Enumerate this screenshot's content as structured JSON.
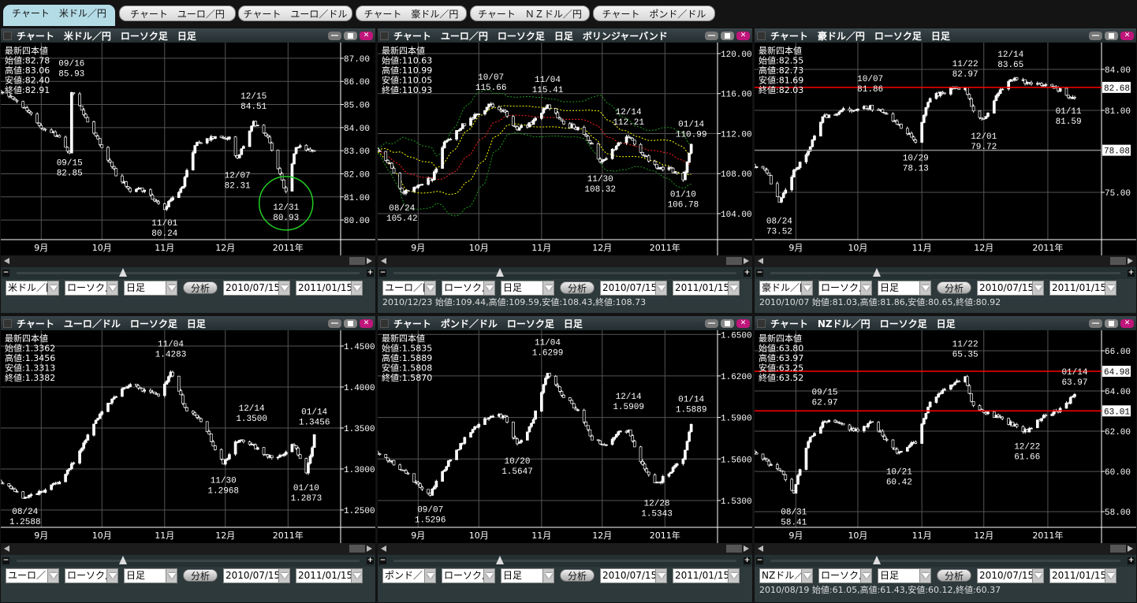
{
  "tabs": [
    {
      "label": "チャート　米ドル／円",
      "active": true
    },
    {
      "label": "チャート　ユーロ／円",
      "active": false
    },
    {
      "label": "チャート　ユーロ／ドル",
      "active": false
    },
    {
      "label": "チャート　豪ドル／円",
      "active": false
    },
    {
      "label": "チャート　ＮＺドル／円",
      "active": false
    },
    {
      "label": "チャート　ポンド／ドル",
      "active": false
    }
  ],
  "colors": {
    "up": "#ffffff",
    "grid": "#555555",
    "hline": "#ff0000",
    "circle": "#22cc22",
    "sma": "#ff2020",
    "band1": "#ffff00",
    "band2": "#1a9a1a",
    "close_button": "#c0157a",
    "active_tab": "#b4dce6"
  },
  "panels": [
    {
      "title": "チャート　米ドル／円　ローソク足　日足",
      "pair": "米ドル／円",
      "chart_type": "ローソク足",
      "period": "日足",
      "analyze": "分析",
      "from": "2010/07/15",
      "to": "2011/01/15",
      "status": "",
      "latest": {
        "heading": "最新四本値",
        "open": "始値:82.78",
        "high": "高値:83.06",
        "low": "安値:82.40",
        "close": "終値:82.91"
      },
      "yticks": [
        "87.00",
        "86.00",
        "85.00",
        "84.00",
        "83.00",
        "82.00",
        "81.00",
        "80.00"
      ],
      "ylim": [
        79.15,
        87.68
      ],
      "months": [
        "9月",
        "10月",
        "11月",
        "12月",
        "2011年"
      ],
      "price_path": [
        [
          "08/12",
          85.6
        ],
        [
          "08/20",
          85.2
        ],
        [
          "09/01",
          84.0
        ],
        [
          "09/10",
          83.6
        ],
        [
          "09/15",
          82.9
        ],
        [
          "09/16",
          85.6
        ],
        [
          "09/24",
          84.3
        ],
        [
          "10/08",
          82.0
        ],
        [
          "10/15",
          81.3
        ],
        [
          "10/22",
          81.3
        ],
        [
          "11/01",
          80.5
        ],
        [
          "11/10",
          81.5
        ],
        [
          "11/16",
          83.3
        ],
        [
          "11/25",
          83.6
        ],
        [
          "12/03",
          83.5
        ],
        [
          "12/07",
          82.6
        ],
        [
          "12/15",
          84.2
        ],
        [
          "12/22",
          83.6
        ],
        [
          "12/28",
          82.0
        ],
        [
          "12/31",
          81.2
        ],
        [
          "01/05",
          83.2
        ],
        [
          "01/14",
          82.9
        ]
      ],
      "annotations": [
        {
          "date": "09/16",
          "value": "85.93",
          "kind": "high"
        },
        {
          "date": "09/15",
          "value": "82.85",
          "kind": "low"
        },
        {
          "date": "11/01",
          "value": "80.24",
          "kind": "low"
        },
        {
          "date": "12/07",
          "value": "82.31",
          "kind": "low"
        },
        {
          "date": "12/15",
          "value": "84.51",
          "kind": "high"
        },
        {
          "date": "12/31",
          "value": "80.93",
          "kind": "low",
          "circled": true
        }
      ],
      "hlines": [],
      "bollinger": false
    },
    {
      "title": "チャート　ユーロ／円　ローソク足　日足　ボリンジャーバンド",
      "pair": "ユーロ／円",
      "chart_type": "ローソク足",
      "period": "日足",
      "analyze": "分析",
      "from": "2010/07/15",
      "to": "2011/01/15",
      "status": "2010/12/23 始値:109.44,高値:109.59,安値:108.43,終値:108.73",
      "latest": {
        "heading": "最新四本値",
        "open": "始値:110.63",
        "high": "高値:110.99",
        "low": "安値:110.05",
        "close": "終値:110.93"
      },
      "yticks": [
        "120.00",
        "116.00",
        "112.00",
        "108.00",
        "104.00"
      ],
      "ylim": [
        101.4,
        121.1
      ],
      "months": [
        "9月",
        "10月",
        "11月",
        "12月",
        "2011年"
      ],
      "price_path": [
        [
          "08/12",
          110.5
        ],
        [
          "08/18",
          109.0
        ],
        [
          "08/24",
          106.0
        ],
        [
          "09/02",
          107.0
        ],
        [
          "09/08",
          107.5
        ],
        [
          "09/14",
          111.0
        ],
        [
          "09/24",
          113.0
        ],
        [
          "10/01",
          114.0
        ],
        [
          "10/07",
          115.0
        ],
        [
          "10/14",
          114.0
        ],
        [
          "10/20",
          112.5
        ],
        [
          "10/27",
          113.0
        ],
        [
          "11/04",
          114.8
        ],
        [
          "11/12",
          113.0
        ],
        [
          "11/19",
          112.5
        ],
        [
          "11/26",
          111.0
        ],
        [
          "11/30",
          109.0
        ],
        [
          "12/07",
          110.5
        ],
        [
          "12/14",
          111.8
        ],
        [
          "12/21",
          110.0
        ],
        [
          "12/28",
          108.5
        ],
        [
          "01/04",
          108.5
        ],
        [
          "01/10",
          107.2
        ],
        [
          "01/14",
          110.9
        ]
      ],
      "annotations": [
        {
          "date": "08/24",
          "value": "105.42",
          "kind": "low"
        },
        {
          "date": "10/07",
          "value": "115.66",
          "kind": "high"
        },
        {
          "date": "11/04",
          "value": "115.41",
          "kind": "high"
        },
        {
          "date": "11/30",
          "value": "108.32",
          "kind": "low"
        },
        {
          "date": "12/14",
          "value": "112.21",
          "kind": "high"
        },
        {
          "date": "01/10",
          "value": "106.78",
          "kind": "low"
        },
        {
          "date": "01/14",
          "value": "110.99",
          "kind": "high"
        }
      ],
      "hlines": [],
      "bollinger": true
    },
    {
      "title": "チャート　豪ドル／円　ローソク足　日足",
      "pair": "豪ドル／円",
      "chart_type": "ローソク足",
      "period": "日足",
      "analyze": "分析",
      "from": "2010/07/15",
      "to": "2011/01/15",
      "status": "2010/10/07 始値:81.03,高値:81.86,安値:80.65,終値:80.92",
      "latest": {
        "heading": "最新四本値",
        "open": "始値:82.55",
        "high": "高値:82.73",
        "low": "安値:81.69",
        "close": "終値:82.03"
      },
      "yticks": [
        "84.00",
        "81.00",
        "75.00"
      ],
      "ylim": [
        71.54,
        85.96
      ],
      "months": [
        "9月",
        "10月",
        "11月",
        "12月",
        "2011年"
      ],
      "price_path": [
        [
          "08/12",
          77.0
        ],
        [
          "08/18",
          76.5
        ],
        [
          "08/24",
          74.2
        ],
        [
          "08/31",
          76.5
        ],
        [
          "09/07",
          78.0
        ],
        [
          "09/14",
          80.5
        ],
        [
          "09/24",
          81.0
        ],
        [
          "10/07",
          81.2
        ],
        [
          "10/14",
          80.8
        ],
        [
          "10/20",
          80.0
        ],
        [
          "10/29",
          78.8
        ],
        [
          "11/05",
          82.0
        ],
        [
          "11/15",
          82.5
        ],
        [
          "11/22",
          82.6
        ],
        [
          "11/26",
          81.0
        ],
        [
          "12/01",
          80.3
        ],
        [
          "12/07",
          82.0
        ],
        [
          "12/14",
          83.3
        ],
        [
          "12/24",
          83.0
        ],
        [
          "12/31",
          82.8
        ],
        [
          "01/07",
          82.5
        ],
        [
          "01/11",
          82.0
        ],
        [
          "01/14",
          82.0
        ]
      ],
      "annotations": [
        {
          "date": "08/24",
          "value": "73.52",
          "kind": "low"
        },
        {
          "date": "10/07",
          "value": "81.86",
          "kind": "high"
        },
        {
          "date": "10/29",
          "value": "78.13",
          "kind": "low"
        },
        {
          "date": "11/22",
          "value": "82.97",
          "kind": "high"
        },
        {
          "date": "12/01",
          "value": "79.72",
          "kind": "low"
        },
        {
          "date": "12/14",
          "value": "83.65",
          "kind": "high"
        },
        {
          "date": "01/11",
          "value": "81.59",
          "kind": "low"
        }
      ],
      "hlines": [
        {
          "value": 82.68,
          "label": "82.68",
          "color": "#ff0000"
        },
        {
          "value": 78.08,
          "label": "78.08",
          "color": "#888888"
        }
      ],
      "bollinger": false
    },
    {
      "title": "チャート　ユーロ／ドル　ローソク足　日足",
      "pair": "ユーロ／ドル",
      "chart_type": "ローソク足",
      "period": "日足",
      "analyze": "分析",
      "from": "2010/07/15",
      "to": "2011/01/15",
      "status": "",
      "latest": {
        "heading": "最新四本値",
        "open": "始値:1.3362",
        "high": "高値:1.3456",
        "low": "安値:1.3313",
        "close": "終値:1.3382"
      },
      "yticks": [
        "1.4500",
        "1.4000",
        "1.3500",
        "1.3000",
        "1.2500"
      ],
      "ylim": [
        1.2288,
        1.4692
      ],
      "months": [
        "9月",
        "10月",
        "11月",
        "12月",
        "2011年"
      ],
      "price_path": [
        [
          "08/12",
          1.285
        ],
        [
          "08/18",
          1.275
        ],
        [
          "08/24",
          1.265
        ],
        [
          "09/03",
          1.275
        ],
        [
          "09/10",
          1.285
        ],
        [
          "09/17",
          1.31
        ],
        [
          "09/24",
          1.34
        ],
        [
          "10/01",
          1.37
        ],
        [
          "10/08",
          1.39
        ],
        [
          "10/15",
          1.405
        ],
        [
          "10/22",
          1.395
        ],
        [
          "10/29",
          1.39
        ],
        [
          "11/04",
          1.418
        ],
        [
          "11/12",
          1.37
        ],
        [
          "11/19",
          1.36
        ],
        [
          "11/25",
          1.33
        ],
        [
          "11/30",
          1.305
        ],
        [
          "12/07",
          1.335
        ],
        [
          "12/14",
          1.33
        ],
        [
          "12/21",
          1.315
        ],
        [
          "12/28",
          1.315
        ],
        [
          "01/04",
          1.33
        ],
        [
          "01/10",
          1.293
        ],
        [
          "01/14",
          1.34
        ]
      ],
      "annotations": [
        {
          "date": "08/24",
          "value": "1.2588",
          "kind": "low"
        },
        {
          "date": "11/04",
          "value": "1.4283",
          "kind": "high"
        },
        {
          "date": "11/30",
          "value": "1.2968",
          "kind": "low"
        },
        {
          "date": "12/14",
          "value": "1.3500",
          "kind": "high"
        },
        {
          "date": "01/10",
          "value": "1.2873",
          "kind": "low"
        },
        {
          "date": "01/14",
          "value": "1.3456",
          "kind": "high"
        }
      ],
      "hlines": [],
      "bollinger": false
    },
    {
      "title": "チャート　ポンド／ドル　ローソク足　日足",
      "pair": "ポンド／ドル",
      "chart_type": "ローソク足",
      "period": "日足",
      "analyze": "分析",
      "from": "2010/07/15",
      "to": "2011/01/15",
      "status": "",
      "latest": {
        "heading": "最新四本値",
        "open": "始値:1.5835",
        "high": "高値:1.5889",
        "low": "安値:1.5808",
        "close": "終値:1.5870"
      },
      "yticks": [
        "1.6500",
        "1.6200",
        "1.5900",
        "1.5600",
        "1.5300"
      ],
      "ylim": [
        1.5106,
        1.653
      ],
      "months": [
        "9月",
        "10月",
        "11月",
        "12月",
        "2011年"
      ],
      "price_path": [
        [
          "08/12",
          1.565
        ],
        [
          "08/20",
          1.557
        ],
        [
          "08/27",
          1.548
        ],
        [
          "09/07",
          1.535
        ],
        [
          "09/14",
          1.553
        ],
        [
          "09/24",
          1.575
        ],
        [
          "10/01",
          1.585
        ],
        [
          "10/07",
          1.592
        ],
        [
          "10/14",
          1.59
        ],
        [
          "10/20",
          1.57
        ],
        [
          "10/27",
          1.585
        ],
        [
          "11/04",
          1.622
        ],
        [
          "11/12",
          1.605
        ],
        [
          "11/19",
          1.595
        ],
        [
          "11/26",
          1.575
        ],
        [
          "12/03",
          1.57
        ],
        [
          "12/10",
          1.58
        ],
        [
          "12/14",
          1.58
        ],
        [
          "12/21",
          1.555
        ],
        [
          "12/28",
          1.542
        ],
        [
          "01/04",
          1.552
        ],
        [
          "01/10",
          1.56
        ],
        [
          "01/14",
          1.585
        ]
      ],
      "annotations": [
        {
          "date": "09/07",
          "value": "1.5296",
          "kind": "low"
        },
        {
          "date": "10/20",
          "value": "1.5647",
          "kind": "low"
        },
        {
          "date": "11/04",
          "value": "1.6299",
          "kind": "high"
        },
        {
          "date": "12/14",
          "value": "1.5909",
          "kind": "high"
        },
        {
          "date": "12/28",
          "value": "1.5343",
          "kind": "low"
        },
        {
          "date": "01/14",
          "value": "1.5889",
          "kind": "high"
        }
      ],
      "hlines": [],
      "bollinger": false
    },
    {
      "title": "チャート　NZドル／円　ローソク足　日足",
      "pair": "NZドル／円",
      "chart_type": "ローソク足",
      "period": "日足",
      "analyze": "分析",
      "from": "2010/07/15",
      "to": "2011/01/15",
      "status": "2010/08/19 始値:61.05,高値:61.43,安値:60.12,終値:60.37",
      "latest": {
        "heading": "最新四本値",
        "open": "始値:63.80",
        "high": "高値:63.97",
        "low": "安値:63.25",
        "close": "終値:63.52"
      },
      "yticks": [
        "66.00",
        "64.00",
        "62.00",
        "60.00",
        "58.00"
      ],
      "ylim": [
        57.22,
        67.02
      ],
      "months": [
        "9月",
        "10月",
        "11月",
        "12月",
        "2011年"
      ],
      "price_path": [
        [
          "08/12",
          61.0
        ],
        [
          "08/19",
          60.4
        ],
        [
          "08/25",
          60.0
        ],
        [
          "08/31",
          59.0
        ],
        [
          "09/07",
          61.5
        ],
        [
          "09/15",
          62.5
        ],
        [
          "09/24",
          62.3
        ],
        [
          "10/01",
          62.0
        ],
        [
          "10/08",
          62.5
        ],
        [
          "10/15",
          61.5
        ],
        [
          "10/21",
          60.9
        ],
        [
          "10/29",
          61.5
        ],
        [
          "11/05",
          63.5
        ],
        [
          "11/12",
          64.0
        ],
        [
          "11/22",
          64.7
        ],
        [
          "11/26",
          63.2
        ],
        [
          "12/03",
          62.9
        ],
        [
          "12/10",
          62.6
        ],
        [
          "12/17",
          62.2
        ],
        [
          "12/22",
          62.0
        ],
        [
          "12/29",
          62.7
        ],
        [
          "01/05",
          63.0
        ],
        [
          "01/10",
          63.3
        ],
        [
          "01/14",
          63.9
        ]
      ],
      "annotations": [
        {
          "date": "08/31",
          "value": "58.41",
          "kind": "low"
        },
        {
          "date": "09/15",
          "value": "62.97",
          "kind": "high"
        },
        {
          "date": "10/21",
          "value": "60.42",
          "kind": "low"
        },
        {
          "date": "11/22",
          "value": "65.35",
          "kind": "high"
        },
        {
          "date": "12/22",
          "value": "61.66",
          "kind": "low"
        },
        {
          "date": "01/14",
          "value": "63.97",
          "kind": "high"
        }
      ],
      "hlines": [
        {
          "value": 64.98,
          "label": "64.98",
          "color": "#ff0000"
        },
        {
          "value": 63.01,
          "label": "63.01",
          "color": "#ff0000"
        }
      ],
      "bollinger": false
    }
  ]
}
